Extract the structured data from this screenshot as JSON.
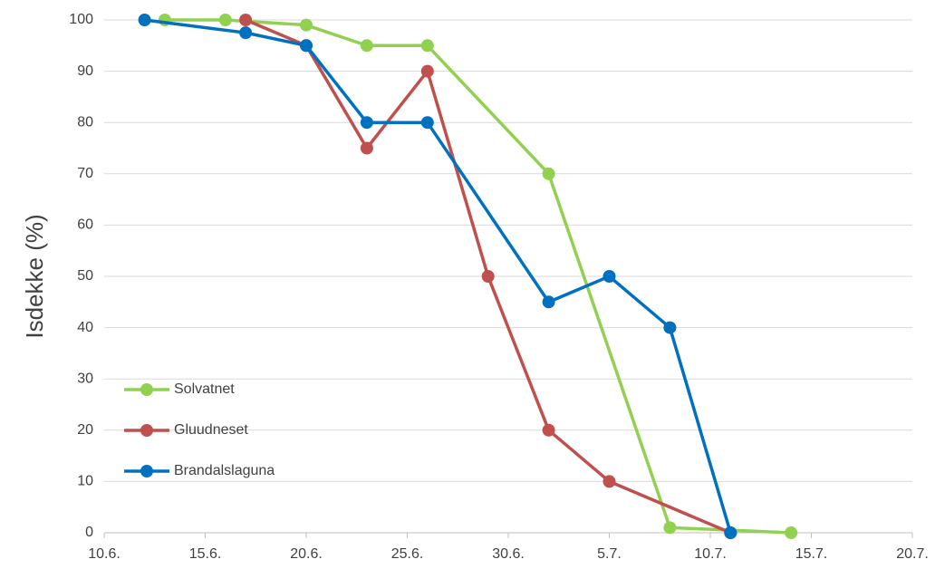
{
  "chart_data": {
    "type": "line",
    "y_label": "Isdekke (%)",
    "xlim": [
      0,
      40
    ],
    "xticks": [
      {
        "value": 0,
        "label": "10.6."
      },
      {
        "value": 5,
        "label": "15.6."
      },
      {
        "value": 10,
        "label": "20.6."
      },
      {
        "value": 15,
        "label": "25.6."
      },
      {
        "value": 20,
        "label": "30.6."
      },
      {
        "value": 25,
        "label": "5.7."
      },
      {
        "value": 30,
        "label": "10.7."
      },
      {
        "value": 35,
        "label": "15.7."
      },
      {
        "value": 40,
        "label": "20.7."
      }
    ],
    "ylim": [
      0,
      100
    ],
    "yticks": [
      0,
      10,
      20,
      30,
      40,
      50,
      60,
      70,
      80,
      90,
      100
    ],
    "grid": true,
    "legend": "lower-left",
    "series": [
      {
        "name": "Solvatnet",
        "color": "#92d050",
        "x": [
          3,
          6,
          10,
          13,
          16,
          22,
          28,
          34
        ],
        "values": [
          100,
          100,
          99,
          95,
          95,
          70,
          1,
          0
        ]
      },
      {
        "name": "Gluudneset",
        "color": "#c0504d",
        "x": [
          7,
          10,
          13,
          16,
          19,
          22,
          25,
          31
        ],
        "values": [
          100,
          95,
          75,
          90,
          50,
          20,
          10,
          0
        ]
      },
      {
        "name": "Brandalslaguna",
        "color": "#0070c0",
        "x": [
          2,
          7,
          10,
          13,
          16,
          22,
          25,
          28,
          31
        ],
        "values": [
          100,
          97.5,
          95,
          80,
          80,
          45,
          50,
          40,
          0
        ]
      }
    ]
  }
}
